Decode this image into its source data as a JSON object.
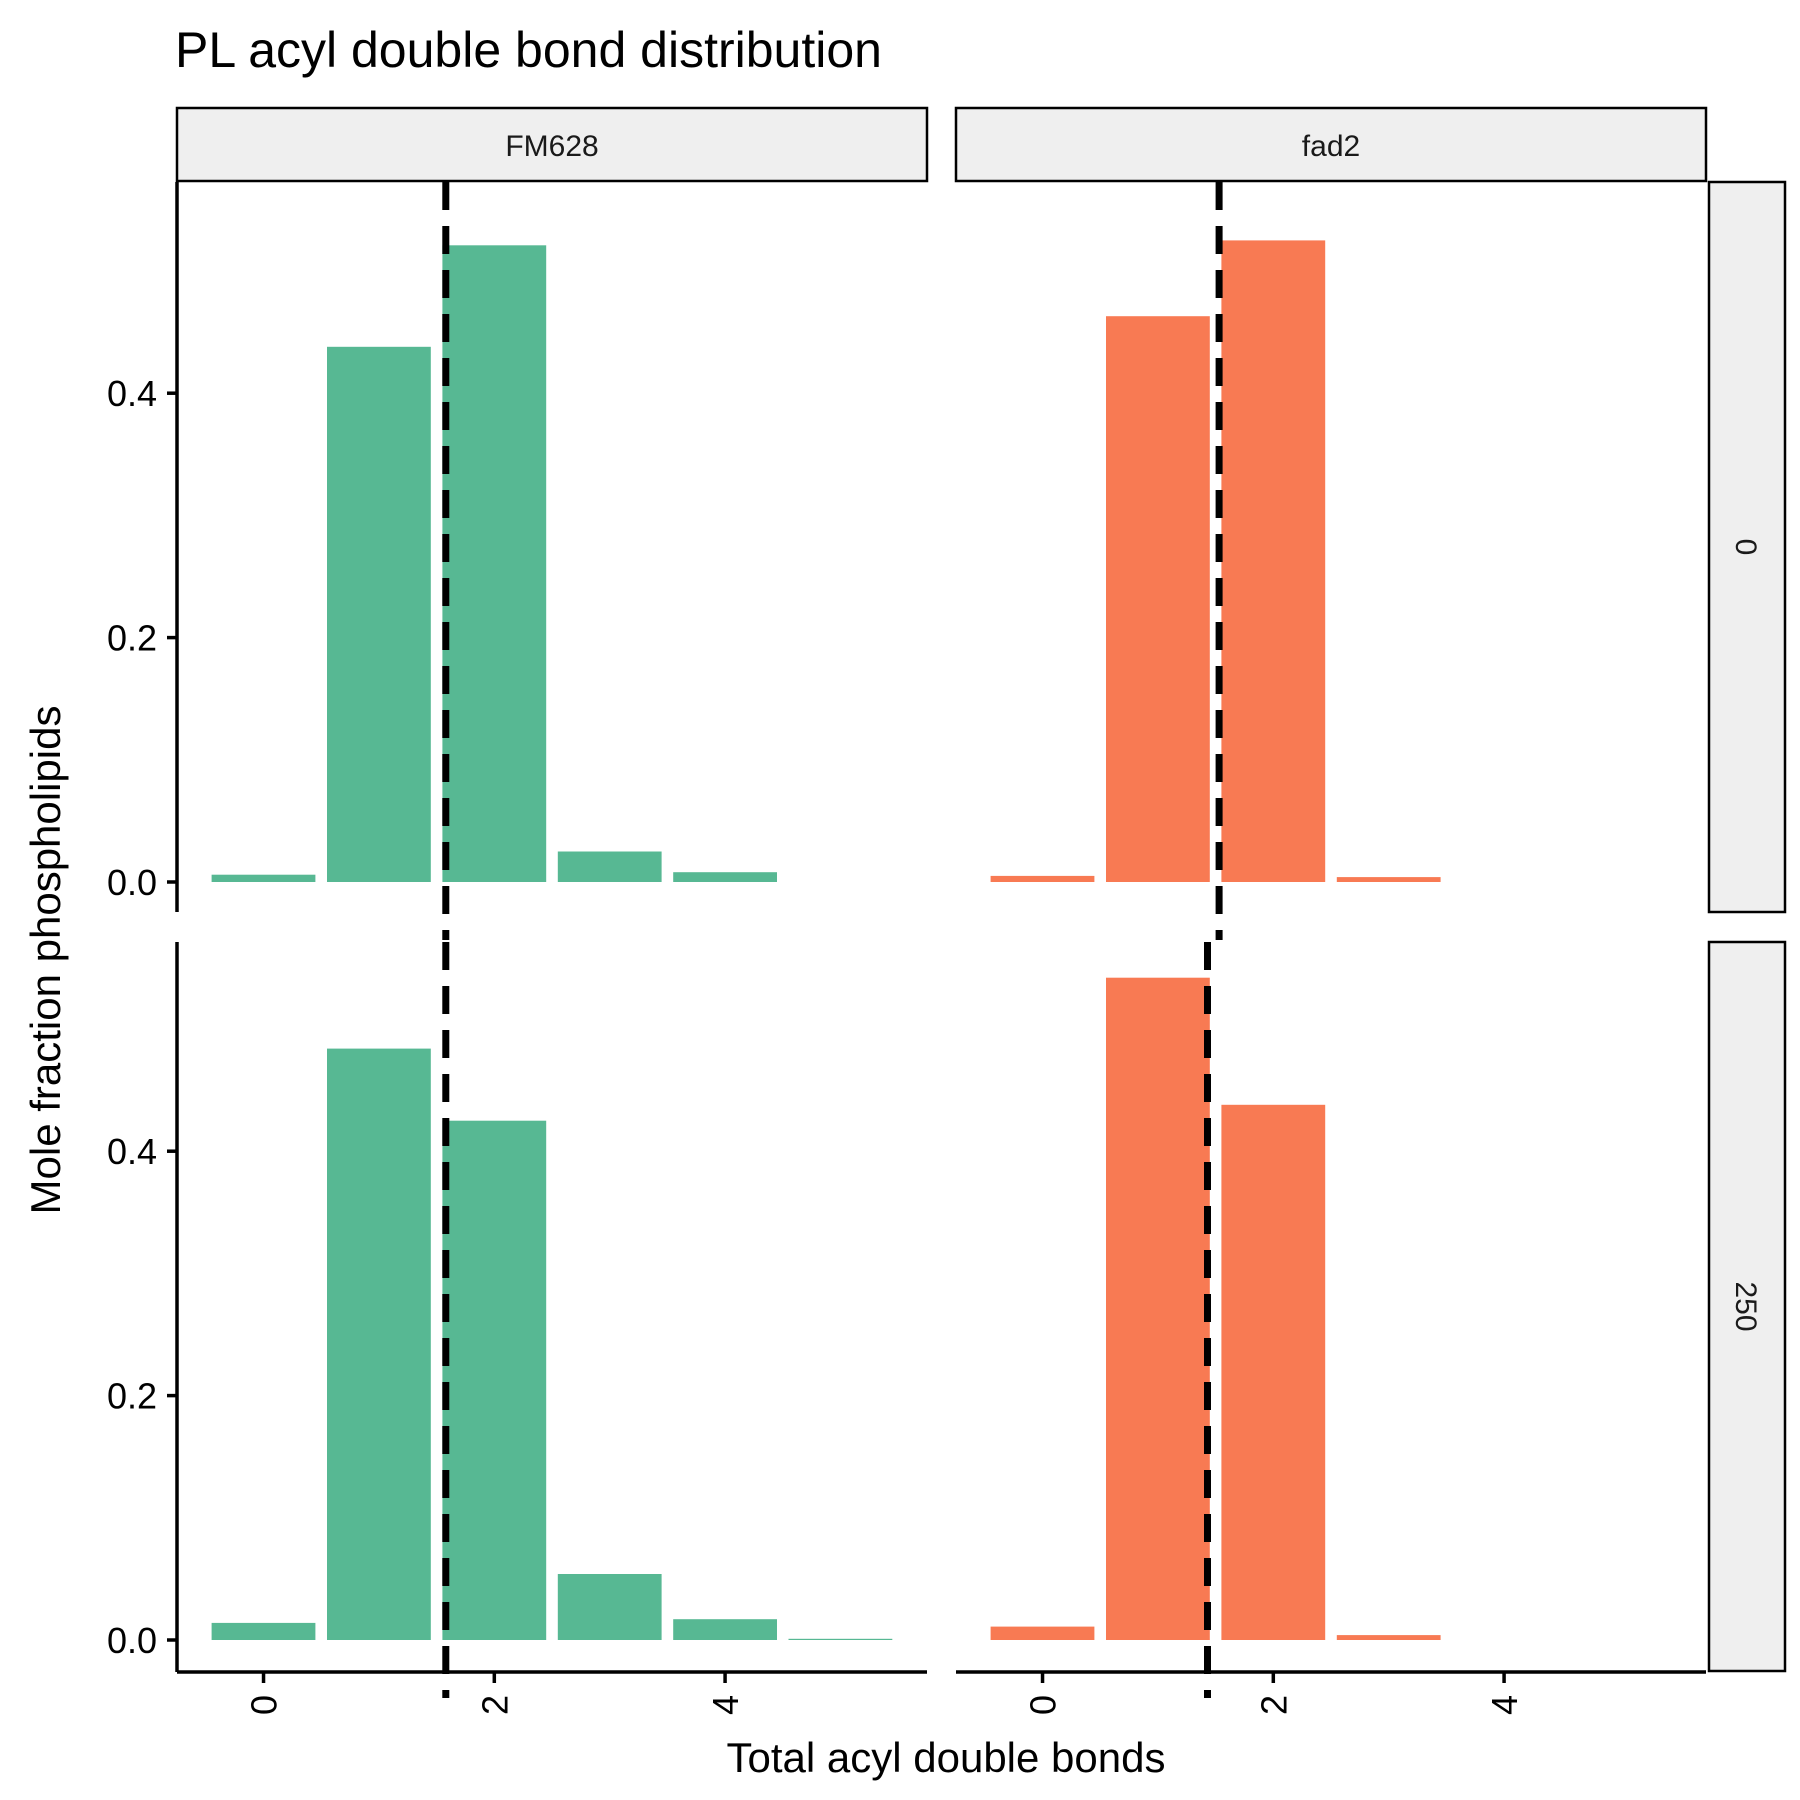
{
  "chart_data": {
    "type": "bar",
    "title": "PL acyl double bond distribution",
    "xlabel": "Total acyl double bonds",
    "ylabel": "Mole fraction phospholipids",
    "xlim": [
      -0.75,
      5.75
    ],
    "ylim": [
      0,
      0.56
    ],
    "x_ticks": [
      0,
      2,
      4
    ],
    "y_ticks": [
      0.0,
      0.2,
      0.4
    ],
    "x_tick_labels": [
      "0",
      "2",
      "4"
    ],
    "y_tick_labels": [
      "0.0",
      "0.2",
      "0.4"
    ],
    "column_facets": [
      "FM628",
      "fad2"
    ],
    "row_facets": [
      "0",
      "250"
    ],
    "colors": {
      "FM628": "#57b893",
      "fad2": "#f87a53"
    },
    "panels": [
      {
        "col": "FM628",
        "row": "0",
        "x": [
          0,
          1,
          2,
          3,
          4
        ],
        "values": [
          0.006,
          0.438,
          0.521,
          0.025,
          0.008
        ],
        "mean_line": 1.58
      },
      {
        "col": "fad2",
        "row": "0",
        "x": [
          0,
          1,
          2,
          3
        ],
        "values": [
          0.005,
          0.463,
          0.525,
          0.004
        ],
        "mean_line": 1.53
      },
      {
        "col": "FM628",
        "row": "250",
        "x": [
          0,
          1,
          2,
          3,
          4,
          5
        ],
        "values": [
          0.014,
          0.484,
          0.425,
          0.054,
          0.017,
          0.001
        ],
        "mean_line": 1.58
      },
      {
        "col": "fad2",
        "row": "250",
        "x": [
          0,
          1,
          2,
          3
        ],
        "values": [
          0.011,
          0.542,
          0.438,
          0.004
        ],
        "mean_line": 1.43
      }
    ]
  }
}
